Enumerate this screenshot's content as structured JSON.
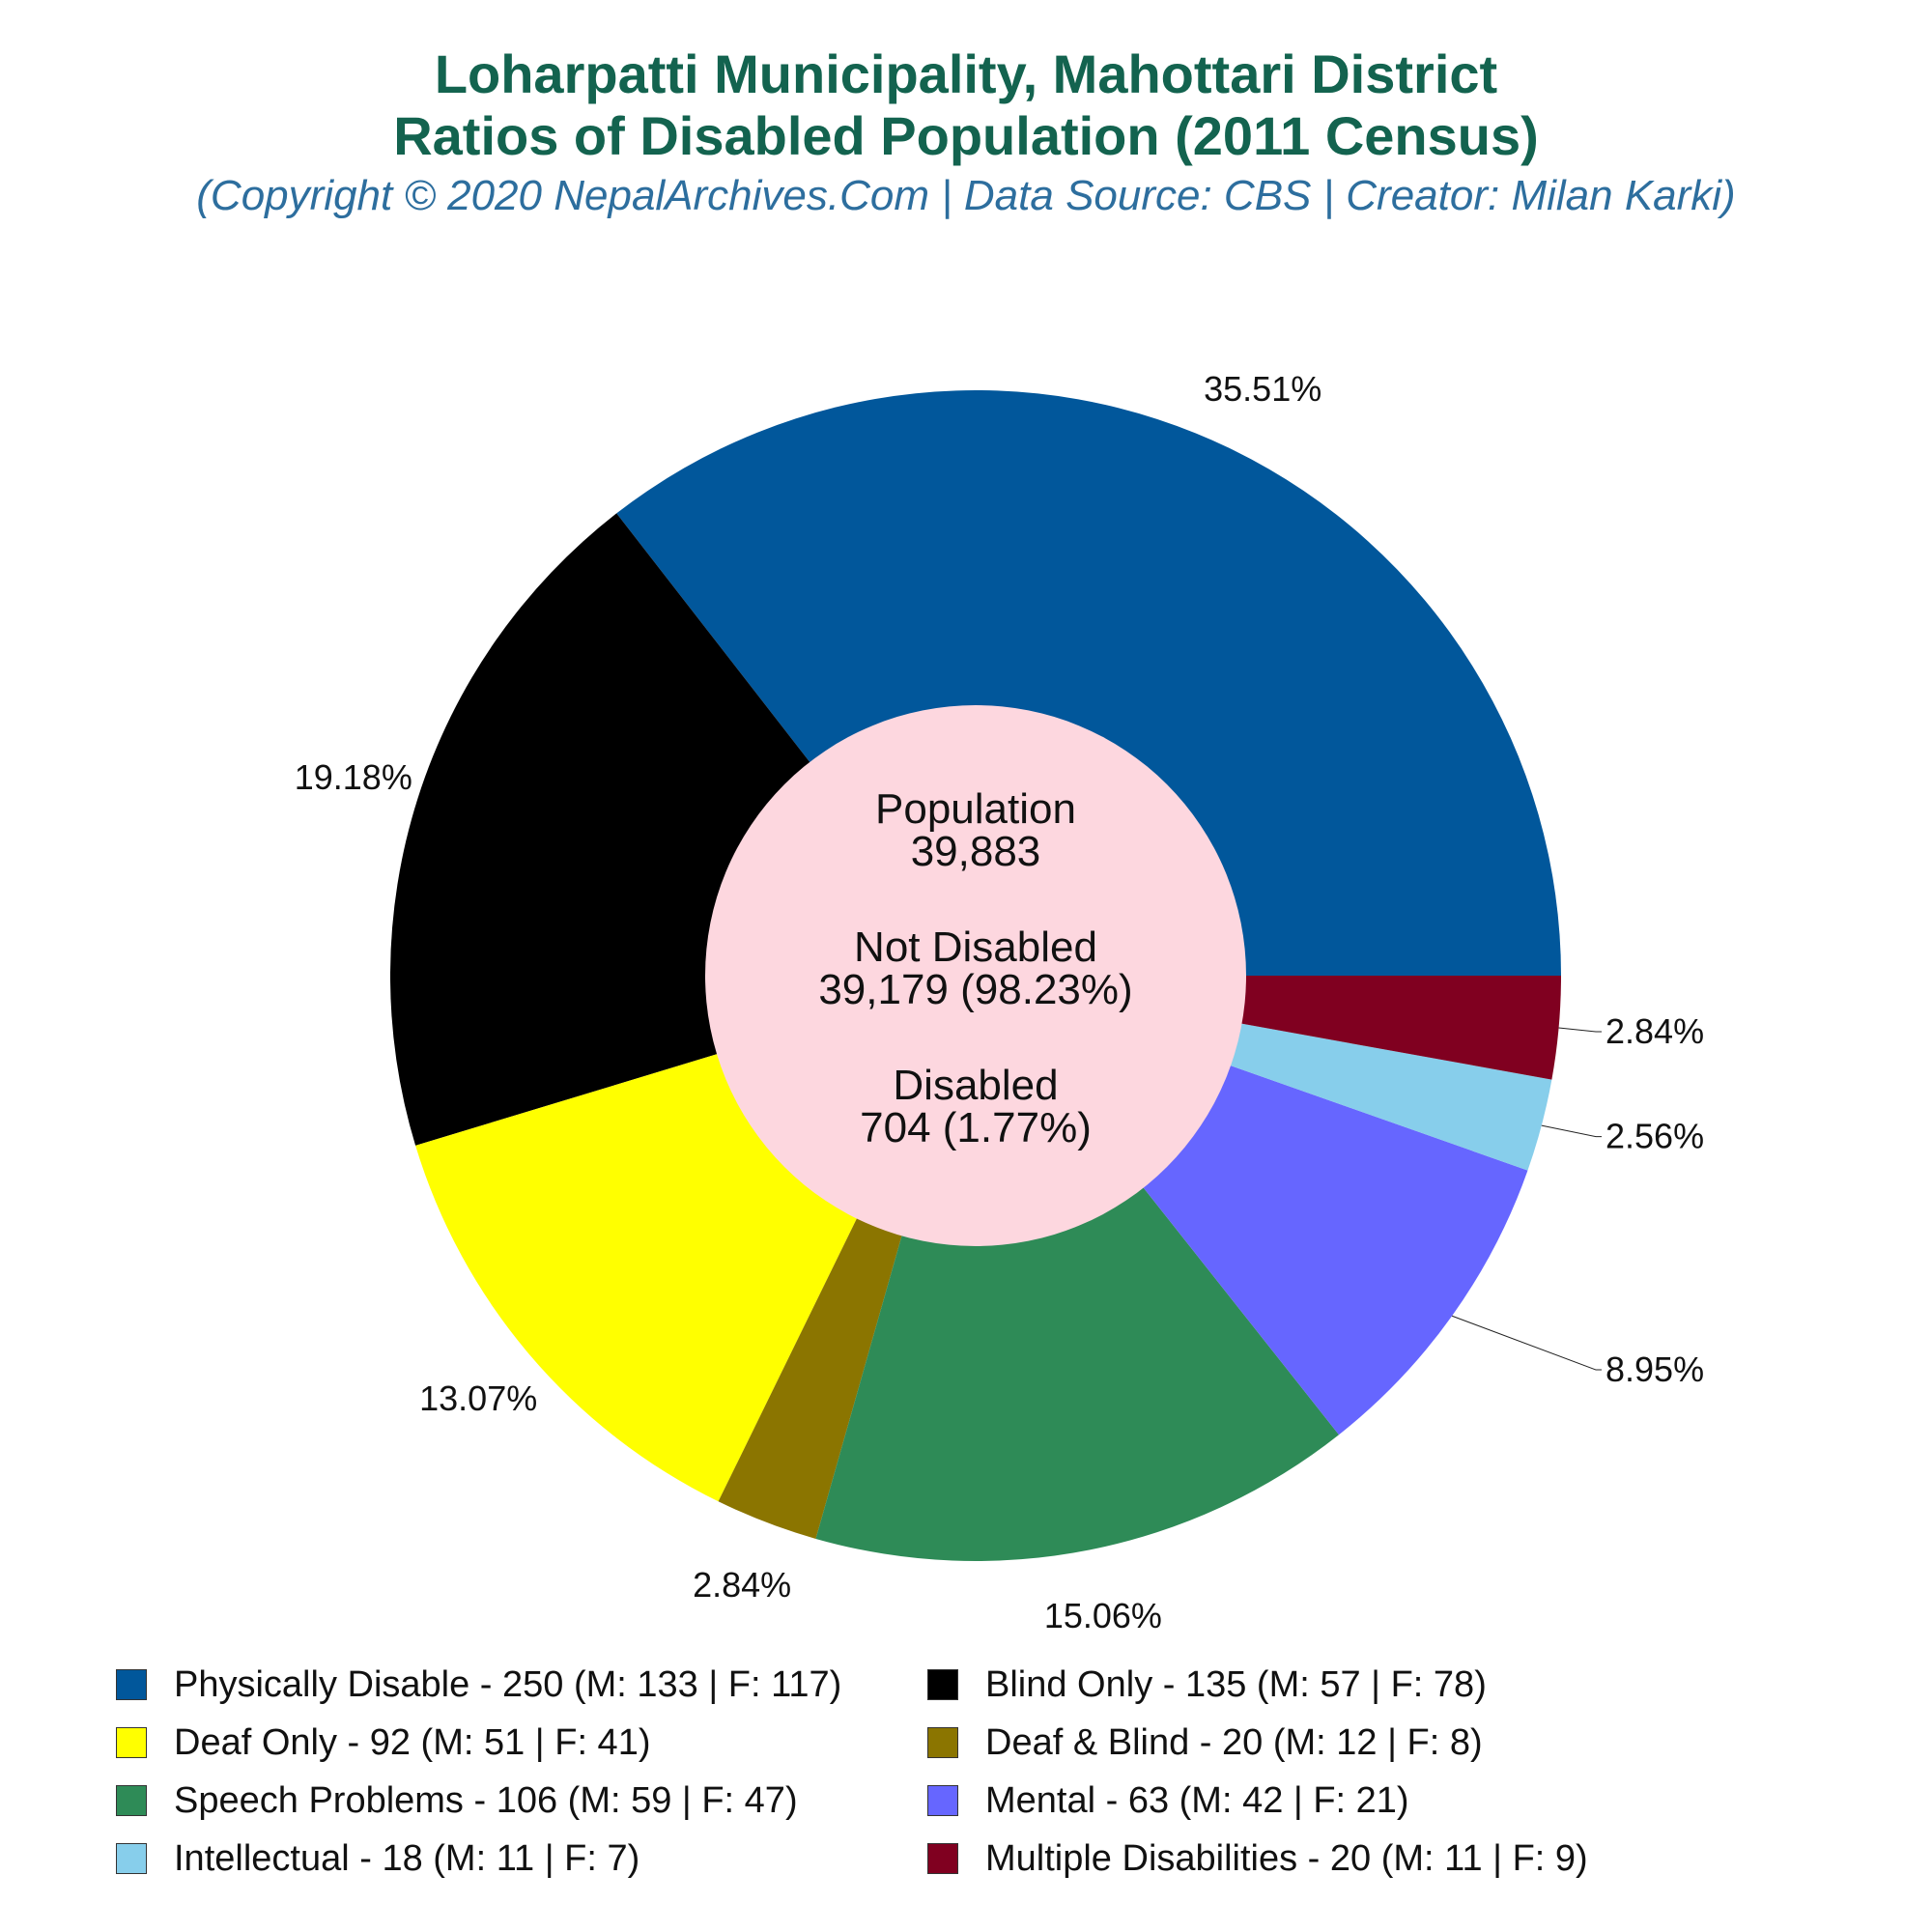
{
  "title_line1": "Loharpatti Municipality, Mahottari District",
  "title_line2": "Ratios of Disabled Population (2011 Census)",
  "subtitle": "(Copyright © 2020 NepalArchives.Com | Data Source: CBS | Creator: Milan Karki)",
  "center": {
    "population_label": "Population",
    "population_value": "39,883",
    "not_disabled_label": "Not Disabled",
    "not_disabled_value": "39,179 (98.23%)",
    "disabled_label": "Disabled",
    "disabled_value": "704 (1.77%)"
  },
  "chart_data": {
    "type": "pie",
    "slices": [
      {
        "category": "Physically Disable",
        "value": 250,
        "percent_label": "35.51%",
        "color": "#01579b",
        "legend": "Physically Disable - 250 (M: 133 | F: 117)"
      },
      {
        "category": "Blind Only",
        "value": 135,
        "percent_label": "19.18%",
        "color": "#000000",
        "legend": "Blind Only - 135 (M: 57 | F: 78)"
      },
      {
        "category": "Deaf Only",
        "value": 92,
        "percent_label": "13.07%",
        "color": "#ffff00",
        "legend": "Deaf Only - 92 (M: 51 | F: 41)"
      },
      {
        "category": "Deaf & Blind",
        "value": 20,
        "percent_label": "2.84%",
        "color": "#8b7500",
        "legend": "Deaf & Blind - 20 (M: 12 | F: 8)"
      },
      {
        "category": "Speech Problems",
        "value": 106,
        "percent_label": "15.06%",
        "color": "#2e8b57",
        "legend": "Speech Problems - 106 (M: 59 | F: 47)"
      },
      {
        "category": "Mental",
        "value": 63,
        "percent_label": "8.95%",
        "color": "#6666ff",
        "legend": "Mental - 63 (M: 42 | F: 21)"
      },
      {
        "category": "Intellectual",
        "value": 18,
        "percent_label": "2.56%",
        "color": "#87ceeb",
        "legend": "Intellectual - 18 (M: 11 | F: 7)"
      },
      {
        "category": "Multiple Disabilities",
        "value": 20,
        "percent_label": "2.84%",
        "color": "#800020",
        "legend": "Multiple Disabilities - 20 (M: 11 | F: 9)"
      }
    ],
    "center_color": "#fdd7df",
    "legend_position": "bottom"
  }
}
